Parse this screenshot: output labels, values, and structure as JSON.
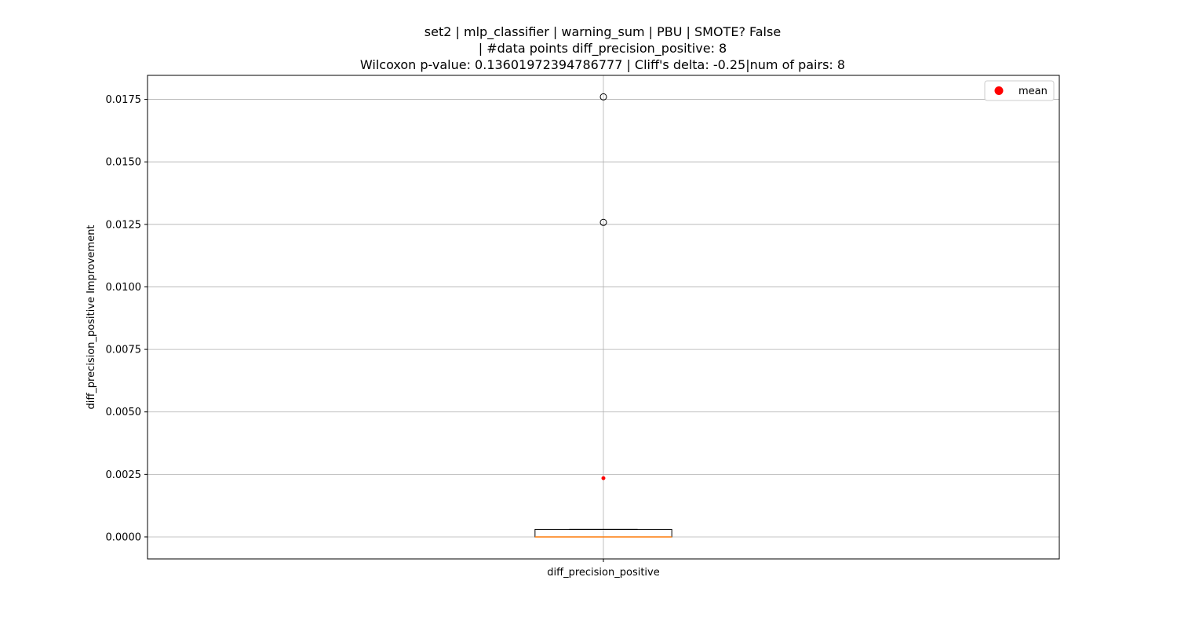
{
  "chart_data": {
    "type": "box",
    "title_lines": [
      "set2 | mlp_classifier | warning_sum | PBU | SMOTE? False",
      "| #data points diff_precision_positive: 8",
      "Wilcoxon p-value: 0.13601972394786777 | Cliff's delta: -0.25|num of pairs: 8"
    ],
    "xlabel": "",
    "ylabel": "diff_precision_positive Improvement",
    "categories": [
      "diff_precision_positive"
    ],
    "ylim": [
      -0.00088,
      0.01846
    ],
    "yticks": [
      0.0,
      0.0025,
      0.005,
      0.0075,
      0.01,
      0.0125,
      0.015,
      0.0175
    ],
    "ytick_labels": [
      "0.0000",
      "0.0025",
      "0.0050",
      "0.0075",
      "0.0100",
      "0.0125",
      "0.0150",
      "0.0175"
    ],
    "grid": true,
    "legend": {
      "placement": "top-right",
      "entries": [
        {
          "label": "mean",
          "marker": "circle",
          "color": "#ff0000"
        }
      ]
    },
    "boxes": [
      {
        "category": "diff_precision_positive",
        "q1": 0.0,
        "median": 0.0,
        "q3": 0.0003,
        "whisker_low": 0.0,
        "whisker_high": 0.0003,
        "outliers": [
          0.01258,
          0.0176
        ],
        "mean": 0.00235
      }
    ],
    "colors": {
      "box": "#000000",
      "median": "#ff7f0e",
      "mean": "#ff0000",
      "grid": "#b0b0b0"
    }
  }
}
